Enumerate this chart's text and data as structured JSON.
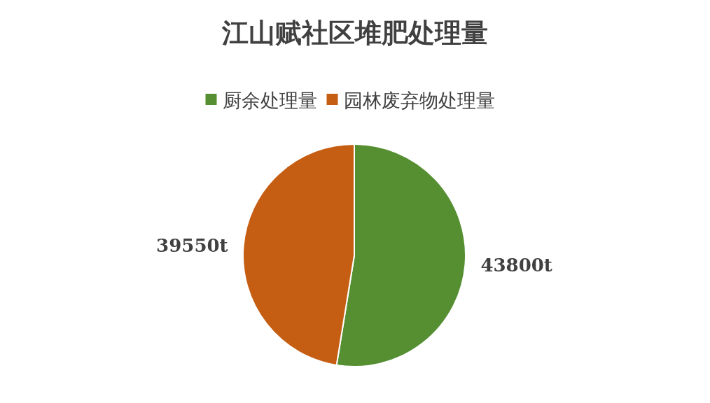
{
  "chart_data": {
    "type": "pie",
    "title": "江山赋社区堆肥处理量",
    "categories": [
      "厨余处理量",
      "园林废弃物处理量"
    ],
    "values": [
      43800,
      39550
    ],
    "colors": [
      "#558f31",
      "#c55d12"
    ],
    "value_labels": [
      "43800t",
      "39550t"
    ],
    "legend": "top"
  }
}
